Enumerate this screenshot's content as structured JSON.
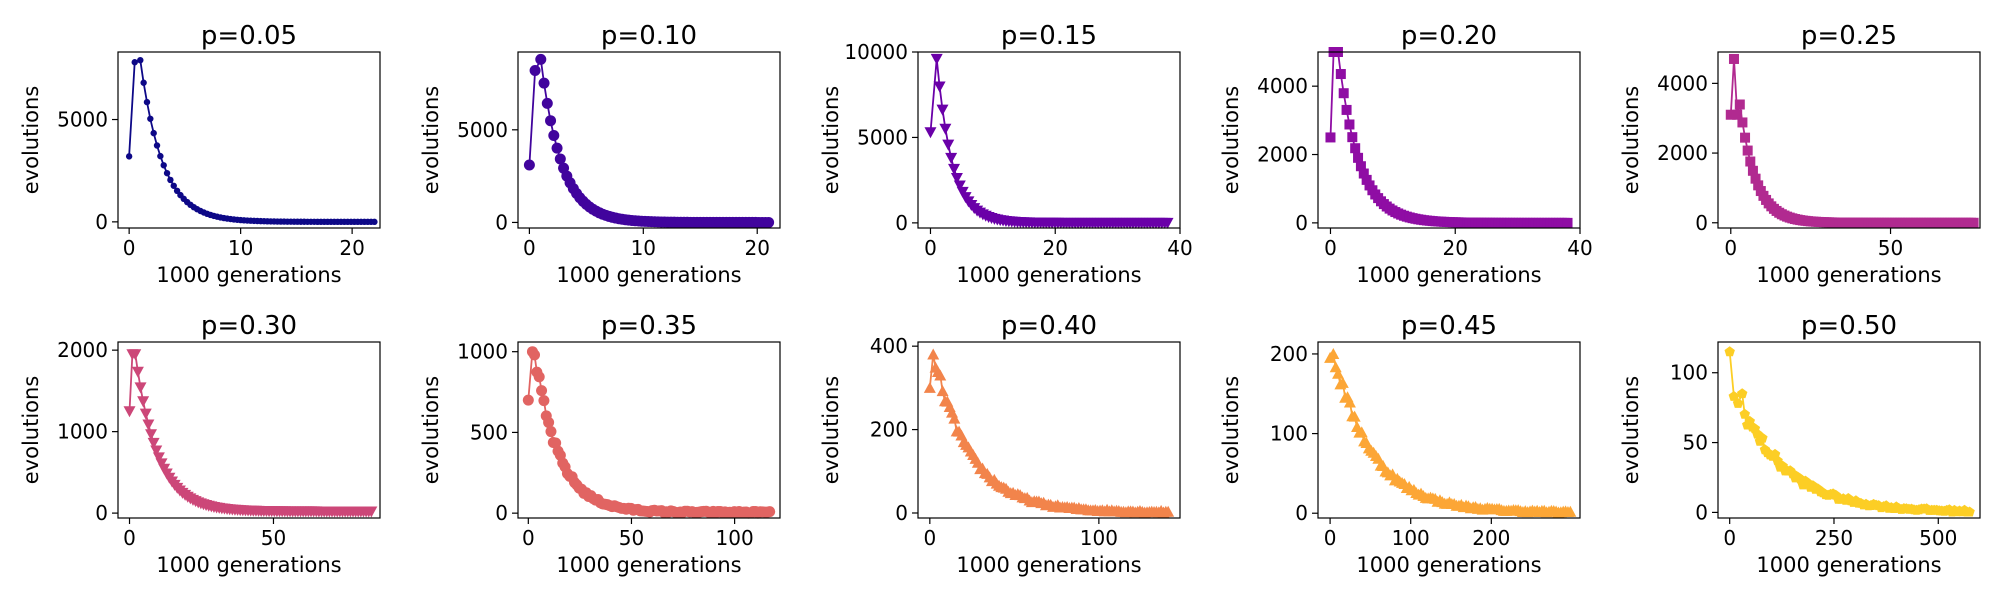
{
  "chart_data": [
    {
      "type": "line",
      "title": "p=0.05",
      "xlabel": "1000 generations",
      "ylabel": "evolutions",
      "color": "#0d0887",
      "marker": "small-circle",
      "xlim": [
        -1,
        22.5
      ],
      "ylim": [
        -300,
        8300
      ],
      "xticks": [
        0,
        10,
        20
      ],
      "yticks": [
        0,
        5000
      ],
      "series": [
        {
          "x": [
            0,
            0.5,
            1
          ],
          "y": [
            3200,
            7800,
            7900
          ]
        }
      ],
      "decay": {
        "x_start": 1,
        "x_end": 22,
        "y_start": 7900,
        "rate": 0.5,
        "floor": 0,
        "n": 70,
        "noise": 0
      }
    },
    {
      "type": "line",
      "title": "p=0.10",
      "xlabel": "1000 generations",
      "ylabel": "evolutions",
      "color": "#41049d",
      "marker": "circle",
      "xlim": [
        -1,
        22
      ],
      "ylim": [
        -300,
        9200
      ],
      "xticks": [
        0,
        10,
        20
      ],
      "yticks": [
        0,
        5000
      ],
      "series": [
        {
          "x": [
            0,
            0.5,
            1
          ],
          "y": [
            3100,
            8200,
            8800
          ]
        }
      ],
      "decay": {
        "x_start": 1,
        "x_end": 21,
        "y_start": 8800,
        "rate": 0.55,
        "floor": 0,
        "n": 70,
        "noise": 0
      }
    },
    {
      "type": "line",
      "title": "p=0.15",
      "xlabel": "1000 generations",
      "ylabel": "evolutions",
      "color": "#6a00a8",
      "marker": "triangle-down",
      "xlim": [
        -2,
        40
      ],
      "ylim": [
        -300,
        10000
      ],
      "xticks": [
        0,
        20,
        40
      ],
      "yticks": [
        0,
        5000,
        10000
      ],
      "series": [
        {
          "x": [
            0,
            1
          ],
          "y": [
            5300,
            9600
          ]
        }
      ],
      "decay": {
        "x_start": 1,
        "x_end": 38,
        "y_start": 9600,
        "rate": 0.4,
        "floor": 0,
        "n": 80,
        "noise": 0
      }
    },
    {
      "type": "line",
      "title": "p=0.20",
      "xlabel": "1000 generations",
      "ylabel": "evolutions",
      "color": "#8f0da4",
      "marker": "square",
      "xlim": [
        -2,
        40
      ],
      "ylim": [
        -150,
        5000
      ],
      "xticks": [
        0,
        20,
        40
      ],
      "yticks": [
        0,
        2000,
        4000
      ],
      "series": [
        {
          "x": [
            0,
            0.5,
            1.2
          ],
          "y": [
            2500,
            5000,
            5000
          ]
        }
      ],
      "decay": {
        "x_start": 1.2,
        "x_end": 38,
        "y_start": 5000,
        "rate": 0.3,
        "floor": 0,
        "n": 80,
        "noise": 0
      }
    },
    {
      "type": "line",
      "title": "p=0.25",
      "xlabel": "1000 generations",
      "ylabel": "evolutions",
      "color": "#b12a90",
      "marker": "square",
      "xlim": [
        -4,
        78
      ],
      "ylim": [
        -150,
        4900
      ],
      "xticks": [
        0,
        50
      ],
      "yticks": [
        0,
        2000,
        4000
      ],
      "series": [
        {
          "x": [
            0,
            1,
            2
          ],
          "y": [
            3100,
            4700,
            3100
          ]
        }
      ],
      "decay": {
        "x_start": 2,
        "x_end": 76,
        "y_start": 4000,
        "rate": 0.2,
        "floor": 0,
        "n": 90,
        "noise": 0
      }
    },
    {
      "type": "line",
      "title": "p=0.30",
      "xlabel": "1000 generations",
      "ylabel": "evolutions",
      "color": "#cc4778",
      "marker": "triangle-down",
      "xlim": [
        -4,
        87
      ],
      "ylim": [
        -60,
        2100
      ],
      "xticks": [
        0,
        50
      ],
      "yticks": [
        0,
        1000,
        2000
      ],
      "series": [
        {
          "x": [
            0,
            1,
            2
          ],
          "y": [
            1250,
            1950,
            1950
          ]
        }
      ],
      "decay": {
        "x_start": 2,
        "x_end": 84,
        "y_start": 1950,
        "rate": 0.13,
        "floor": 20,
        "n": 90,
        "noise": 0
      }
    },
    {
      "type": "line",
      "title": "p=0.35",
      "xlabel": "1000 generations",
      "ylabel": "evolutions",
      "color": "#e16462",
      "marker": "circle",
      "xlim": [
        -5,
        122
      ],
      "ylim": [
        -30,
        1060
      ],
      "xticks": [
        0,
        50,
        100
      ],
      "yticks": [
        0,
        500,
        1000
      ],
      "series": [
        {
          "x": [
            0,
            2,
            3
          ],
          "y": [
            700,
            1000,
            980
          ]
        }
      ],
      "decay": {
        "x_start": 3,
        "x_end": 117,
        "y_start": 980,
        "rate": 0.085,
        "floor": 5,
        "n": 100,
        "noise": 40
      }
    },
    {
      "type": "line",
      "title": "p=0.40",
      "xlabel": "1000 generations",
      "ylabel": "evolutions",
      "color": "#f2844b",
      "marker": "triangle-up",
      "xlim": [
        -7,
        148
      ],
      "ylim": [
        -12,
        410
      ],
      "xticks": [
        0,
        100
      ],
      "yticks": [
        0,
        200,
        400
      ],
      "series": [
        {
          "x": [
            0,
            2
          ],
          "y": [
            300,
            380
          ]
        }
      ],
      "decay": {
        "x_start": 2,
        "x_end": 141,
        "y_start": 380,
        "rate": 0.045,
        "floor": 2,
        "n": 100,
        "noise": 15
      }
    },
    {
      "type": "line",
      "title": "p=0.45",
      "xlabel": "1000 generations",
      "ylabel": "evolutions",
      "color": "#fca636",
      "marker": "triangle-up",
      "xlim": [
        -15,
        310
      ],
      "ylim": [
        -6,
        215
      ],
      "xticks": [
        0,
        100,
        200
      ],
      "yticks": [
        0,
        100,
        200
      ],
      "series": [
        {
          "x": [
            0,
            4
          ],
          "y": [
            195,
            200
          ]
        }
      ],
      "decay": {
        "x_start": 4,
        "x_end": 298,
        "y_start": 200,
        "rate": 0.02,
        "floor": 1,
        "n": 100,
        "noise": 8
      }
    },
    {
      "type": "line",
      "title": "p=0.50",
      "xlabel": "1000 generations",
      "ylabel": "evolutions",
      "color": "#fcce25",
      "marker": "pentagon",
      "xlim": [
        -28,
        600
      ],
      "ylim": [
        -4,
        122
      ],
      "xticks": [
        0,
        250,
        500
      ],
      "yticks": [
        0,
        50,
        100
      ],
      "series": [
        {
          "x": [
            0,
            10,
            20,
            30
          ],
          "y": [
            115,
            83,
            78,
            85
          ]
        }
      ],
      "decay": {
        "x_start": 30,
        "x_end": 575,
        "y_start": 75,
        "rate": 0.0085,
        "floor": 0,
        "n": 90,
        "noise": 5
      }
    }
  ]
}
